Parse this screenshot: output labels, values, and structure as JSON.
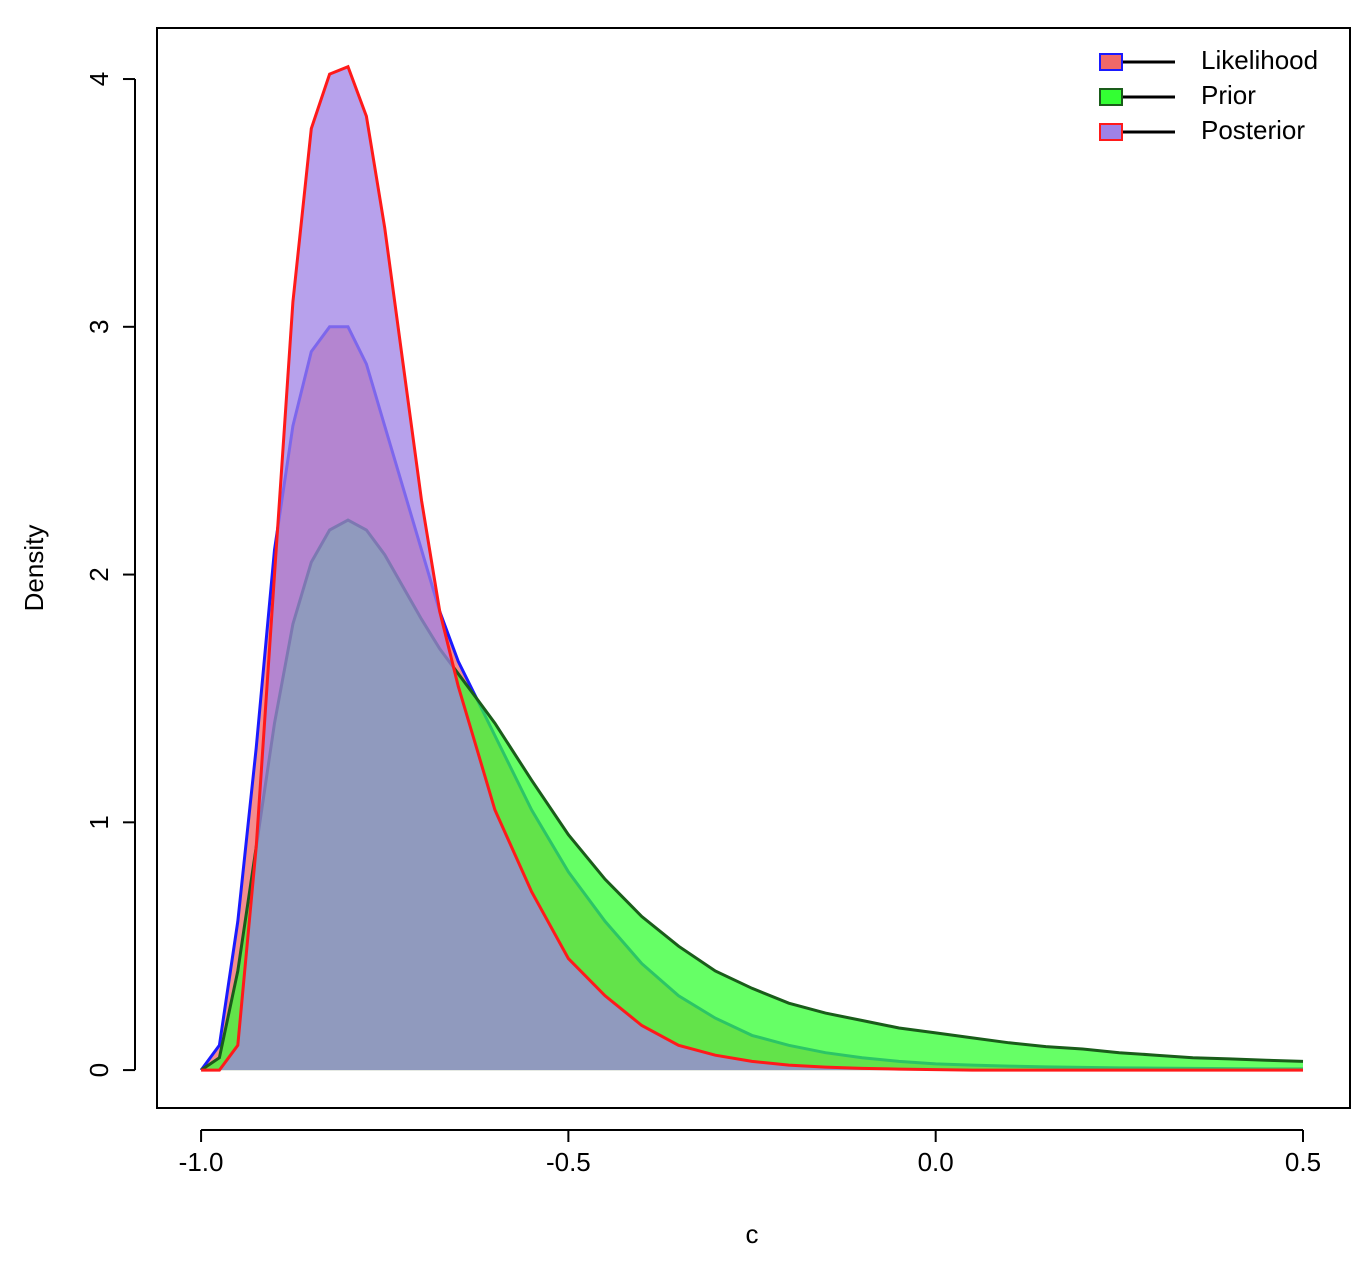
{
  "chart_data": {
    "type": "area",
    "x_label": "c",
    "y_label": "Density",
    "x": [
      -1,
      -0.975,
      -0.95,
      -0.925,
      -0.9,
      -0.875,
      -0.85,
      -0.825,
      -0.8,
      -0.775,
      -0.75,
      -0.725,
      -0.7,
      -0.675,
      -0.65,
      -0.625,
      -0.6,
      -0.55,
      -0.5,
      -0.45,
      -0.4,
      -0.35,
      -0.3,
      -0.25,
      -0.2,
      -0.15,
      -0.1,
      -0.05,
      0,
      0.05,
      0.1,
      0.15,
      0.2,
      0.25,
      0.3,
      0.35,
      0.4,
      0.45,
      0.5
    ],
    "series": [
      {
        "name": "Likelihood",
        "color": "#1a1aff",
        "fill": "#f06868",
        "values": [
          0,
          0.1,
          0.6,
          1.3,
          2.1,
          2.6,
          2.9,
          3.0,
          3.0,
          2.85,
          2.6,
          2.35,
          2.1,
          1.85,
          1.65,
          1.5,
          1.35,
          1.05,
          0.8,
          0.6,
          0.43,
          0.3,
          0.21,
          0.14,
          0.1,
          0.07,
          0.05,
          0.035,
          0.025,
          0.02,
          0.016,
          0.013,
          0.011,
          0.009,
          0.008,
          0.007,
          0.006,
          0.005,
          0.005
        ]
      },
      {
        "name": "Prior",
        "color": "#1a5c1a",
        "fill": "#33ff33",
        "values": [
          0,
          0.05,
          0.4,
          0.9,
          1.4,
          1.8,
          2.05,
          2.18,
          2.22,
          2.18,
          2.08,
          1.95,
          1.82,
          1.7,
          1.6,
          1.5,
          1.4,
          1.17,
          0.95,
          0.77,
          0.62,
          0.5,
          0.4,
          0.33,
          0.27,
          0.23,
          0.2,
          0.17,
          0.15,
          0.13,
          0.11,
          0.095,
          0.085,
          0.07,
          0.06,
          0.05,
          0.045,
          0.04,
          0.035
        ]
      },
      {
        "name": "Posterior",
        "color": "#ff1a1a",
        "fill": "#9f82e6",
        "values": [
          0,
          0,
          0.1,
          0.9,
          2.0,
          3.1,
          3.8,
          4.02,
          4.05,
          3.85,
          3.4,
          2.85,
          2.3,
          1.85,
          1.55,
          1.3,
          1.05,
          0.72,
          0.45,
          0.3,
          0.18,
          0.1,
          0.06,
          0.035,
          0.02,
          0.012,
          0.007,
          0.004,
          0.002,
          0,
          0,
          0,
          0,
          0,
          0,
          0,
          0,
          0,
          0
        ]
      }
    ],
    "xlim": [
      -1.06,
      0.564
    ],
    "ylim": [
      -0.153,
      4.206
    ],
    "xticks": [
      {
        "value": -1,
        "label": "-1.0"
      },
      -0.5,
      {
        "value": 0,
        "label": "0.0"
      },
      0.5
    ],
    "yticks": [
      0,
      1,
      2,
      3,
      4
    ],
    "legend": "top-right"
  }
}
